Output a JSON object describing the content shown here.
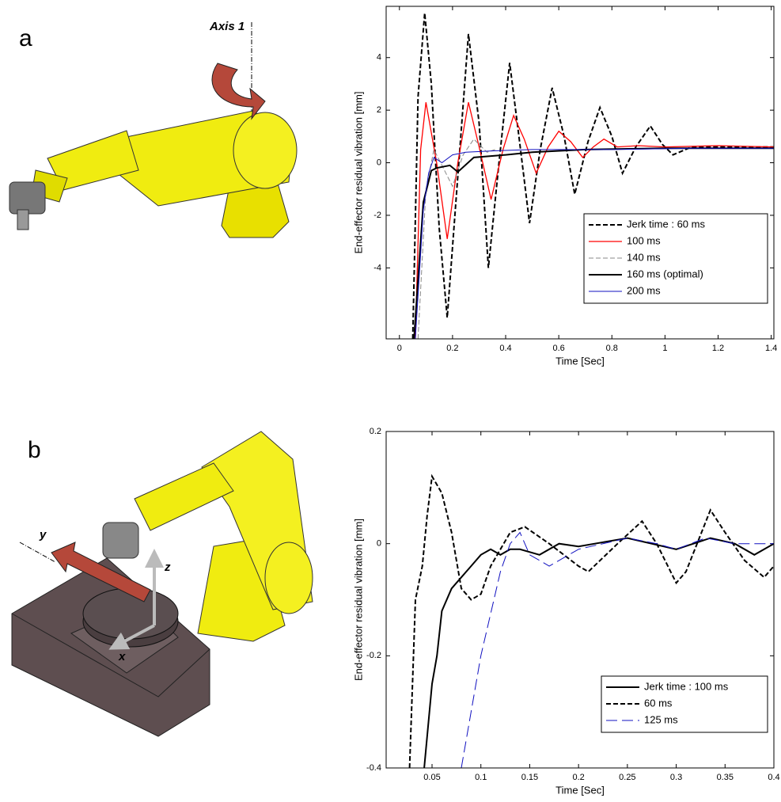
{
  "figure": {
    "panels": [
      {
        "label": "a",
        "annotation": "Axis 1"
      },
      {
        "label": "b",
        "axes": [
          "y",
          "z",
          "x"
        ]
      }
    ]
  },
  "chart_data": [
    {
      "type": "line",
      "xlabel": "Time [Sec]",
      "ylabel": "End-effector residual vibration [mm]",
      "xlim": [
        -0.05,
        1.41
      ],
      "ylim": [
        -6.7,
        5.95
      ],
      "xticks": [
        0,
        0.2,
        0.4,
        0.6,
        0.8,
        1,
        1.2,
        1.4
      ],
      "yticks": [
        -4,
        -2,
        0,
        2,
        4
      ],
      "legend": "lower right",
      "grid": false,
      "series": [
        {
          "name": "Jerk time : 60 ms",
          "color": "#000000",
          "style": "dashed",
          "width": 2,
          "x": [
            0.05,
            0.07,
            0.095,
            0.12,
            0.15,
            0.18,
            0.22,
            0.26,
            0.3,
            0.335,
            0.375,
            0.415,
            0.45,
            0.49,
            0.53,
            0.575,
            0.62,
            0.66,
            0.71,
            0.755,
            0.8,
            0.84,
            0.89,
            0.945,
            0.99,
            1.03,
            1.1,
            1.2,
            1.3,
            1.41
          ],
          "values": [
            -6.7,
            2.5,
            5.7,
            3.0,
            -2.5,
            -5.9,
            -0.5,
            4.9,
            1.5,
            -4.0,
            0.0,
            3.8,
            1.0,
            -2.3,
            0.5,
            2.85,
            1.0,
            -1.2,
            0.8,
            2.1,
            1.0,
            -0.4,
            0.6,
            1.4,
            0.7,
            0.3,
            0.6,
            0.6,
            0.6,
            0.6
          ]
        },
        {
          "name": "100 ms",
          "color": "#ff0000",
          "style": "solid",
          "width": 1.3,
          "x": [
            0.06,
            0.08,
            0.1,
            0.14,
            0.18,
            0.22,
            0.26,
            0.3,
            0.345,
            0.39,
            0.43,
            0.47,
            0.515,
            0.56,
            0.6,
            0.645,
            0.69,
            0.73,
            0.77,
            0.82,
            0.9,
            1.0,
            1.2,
            1.41
          ],
          "values": [
            -6.7,
            0.5,
            2.3,
            0.0,
            -2.9,
            0.0,
            2.3,
            0.6,
            -1.4,
            0.5,
            1.8,
            0.9,
            -0.4,
            0.6,
            1.2,
            0.8,
            0.2,
            0.6,
            0.9,
            0.6,
            0.65,
            0.6,
            0.65,
            0.6
          ]
        },
        {
          "name": "140 ms",
          "color": "#888888",
          "style": "dashed",
          "width": 1,
          "x": [
            0.07,
            0.1,
            0.13,
            0.165,
            0.2,
            0.24,
            0.28,
            0.33,
            0.36
          ],
          "values": [
            -6.7,
            -1.0,
            0.5,
            -0.2,
            -0.9,
            0.3,
            0.9,
            0.4,
            0.5
          ]
        },
        {
          "name": "160 ms (optimal)",
          "color": "#000000",
          "style": "solid",
          "width": 2,
          "x": [
            0.055,
            0.09,
            0.12,
            0.14,
            0.19,
            0.22,
            0.28,
            0.4,
            0.5,
            0.7,
            1.0,
            1.41
          ],
          "values": [
            -6.7,
            -1.5,
            -0.3,
            -0.2,
            -0.1,
            -0.35,
            0.2,
            0.3,
            0.4,
            0.5,
            0.55,
            0.55
          ]
        },
        {
          "name": "200 ms",
          "color": "#1010c0",
          "style": "solid",
          "width": 1,
          "x": [
            0.06,
            0.09,
            0.11,
            0.13,
            0.16,
            0.2,
            0.25,
            0.35,
            0.5,
            0.8,
            1.1,
            1.41
          ],
          "values": [
            -6.7,
            -1.8,
            -0.4,
            0.2,
            0.0,
            0.3,
            0.4,
            0.45,
            0.5,
            0.5,
            0.55,
            0.55
          ]
        }
      ]
    },
    {
      "type": "line",
      "xlabel": "Time [Sec]",
      "ylabel": "End-effector residual vibration [mm]",
      "xlim": [
        0.003,
        0.4
      ],
      "ylim": [
        -0.4,
        0.2
      ],
      "xticks": [
        0.05,
        0.1,
        0.15,
        0.2,
        0.25,
        0.3,
        0.35,
        0.4
      ],
      "yticks": [
        -0.4,
        -0.2,
        0,
        0.2
      ],
      "legend": "lower right",
      "grid": false,
      "series": [
        {
          "name": "Jerk time : 100 ms",
          "color": "#000000",
          "style": "solid",
          "width": 2,
          "x": [
            0.042,
            0.05,
            0.055,
            0.06,
            0.07,
            0.08,
            0.09,
            0.1,
            0.11,
            0.12,
            0.13,
            0.14,
            0.16,
            0.18,
            0.2,
            0.25,
            0.3,
            0.335,
            0.36,
            0.38,
            0.4
          ],
          "values": [
            -0.4,
            -0.25,
            -0.2,
            -0.12,
            -0.08,
            -0.06,
            -0.04,
            -0.02,
            -0.01,
            -0.02,
            -0.01,
            -0.01,
            -0.02,
            0.0,
            -0.005,
            0.01,
            -0.01,
            0.01,
            0.0,
            -0.02,
            0.0
          ]
        },
        {
          "name": "60 ms",
          "color": "#000000",
          "style": "dashed",
          "width": 2,
          "x": [
            0.027,
            0.033,
            0.04,
            0.045,
            0.05,
            0.06,
            0.07,
            0.08,
            0.09,
            0.1,
            0.11,
            0.13,
            0.145,
            0.17,
            0.2,
            0.21,
            0.24,
            0.265,
            0.28,
            0.3,
            0.31,
            0.335,
            0.35,
            0.37,
            0.39,
            0.4
          ],
          "values": [
            -0.4,
            -0.1,
            -0.04,
            0.05,
            0.12,
            0.09,
            0.02,
            -0.08,
            -0.1,
            -0.09,
            -0.04,
            0.02,
            0.03,
            0.0,
            -0.04,
            -0.05,
            0.0,
            0.04,
            0.0,
            -0.07,
            -0.05,
            0.06,
            0.02,
            -0.03,
            -0.06,
            -0.04
          ]
        },
        {
          "name": "125 ms",
          "color": "#1010c0",
          "style": "longdash",
          "width": 1,
          "x": [
            0.08,
            0.1,
            0.12,
            0.13,
            0.14,
            0.15,
            0.16,
            0.17,
            0.2,
            0.25,
            0.28,
            0.3,
            0.33,
            0.36,
            0.4
          ],
          "values": [
            -0.4,
            -0.2,
            -0.05,
            0.0,
            0.02,
            -0.02,
            -0.03,
            -0.04,
            -0.01,
            0.01,
            0.0,
            -0.01,
            0.01,
            0.0,
            0.0
          ]
        }
      ]
    }
  ]
}
